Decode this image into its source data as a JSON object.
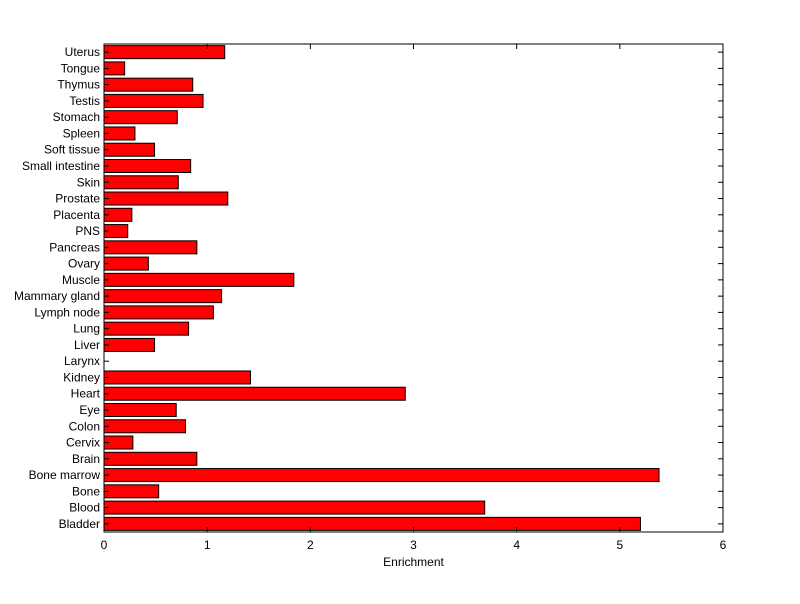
{
  "chart_data": {
    "type": "bar",
    "orientation": "horizontal",
    "xlabel": "Enrichment",
    "ylabel": "",
    "title": "",
    "xlim": [
      0,
      6
    ],
    "x_ticks": [
      "0",
      "1",
      "2",
      "3",
      "4",
      "5",
      "6"
    ],
    "grid": false,
    "bar_color": "#ff0000",
    "bar_edge_color": "#000000",
    "categories": [
      "Bladder",
      "Blood",
      "Bone",
      "Bone marrow",
      "Brain",
      "Cervix",
      "Colon",
      "Eye",
      "Heart",
      "Kidney",
      "Larynx",
      "Liver",
      "Lung",
      "Lymph node",
      "Mammary gland",
      "Muscle",
      "Ovary",
      "Pancreas",
      "PNS",
      "Placenta",
      "Prostate",
      "Skin",
      "Small intestine",
      "Soft tissue",
      "Spleen",
      "Stomach",
      "Testis",
      "Thymus",
      "Tongue",
      "Uterus"
    ],
    "values": [
      5.2,
      3.69,
      0.53,
      5.38,
      0.9,
      0.28,
      0.79,
      0.7,
      2.92,
      1.42,
      0.0,
      0.49,
      0.82,
      1.06,
      1.14,
      1.84,
      0.43,
      0.9,
      0.23,
      0.27,
      1.2,
      0.72,
      0.84,
      0.49,
      0.3,
      0.71,
      0.96,
      0.86,
      0.2,
      1.17
    ]
  }
}
